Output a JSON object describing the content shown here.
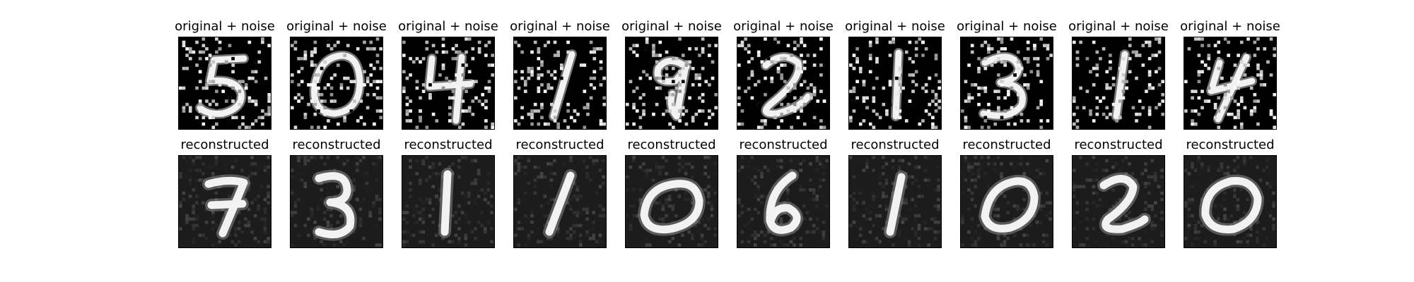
{
  "figure": {
    "noisy_title": "original + noise",
    "recon_title": "reconstructed"
  },
  "noisy_row": [
    {
      "title": "original + noise",
      "digit": "5"
    },
    {
      "title": "original + noise",
      "digit": "0"
    },
    {
      "title": "original + noise",
      "digit": "4"
    },
    {
      "title": "original + noise",
      "digit": "1"
    },
    {
      "title": "original + noise",
      "digit": "9"
    },
    {
      "title": "original + noise",
      "digit": "2"
    },
    {
      "title": "original + noise",
      "digit": "1"
    },
    {
      "title": "original + noise",
      "digit": "3"
    },
    {
      "title": "original + noise",
      "digit": "1"
    },
    {
      "title": "original + noise",
      "digit": "4"
    }
  ],
  "recon_row": [
    {
      "title": "reconstructed",
      "digit": "7"
    },
    {
      "title": "reconstructed",
      "digit": "3"
    },
    {
      "title": "reconstructed",
      "digit": "1"
    },
    {
      "title": "reconstructed",
      "digit": "1"
    },
    {
      "title": "reconstructed",
      "digit": "0"
    },
    {
      "title": "reconstructed",
      "digit": "6"
    },
    {
      "title": "reconstructed",
      "digit": "1"
    },
    {
      "title": "reconstructed",
      "digit": "0"
    },
    {
      "title": "reconstructed",
      "digit": "2"
    },
    {
      "title": "reconstructed",
      "digit": "0"
    }
  ],
  "colors": {
    "background": "#ffffff",
    "noisy_bg": "#000000",
    "recon_bg": "#1c1c1c",
    "stroke": "#f2f2f2"
  }
}
